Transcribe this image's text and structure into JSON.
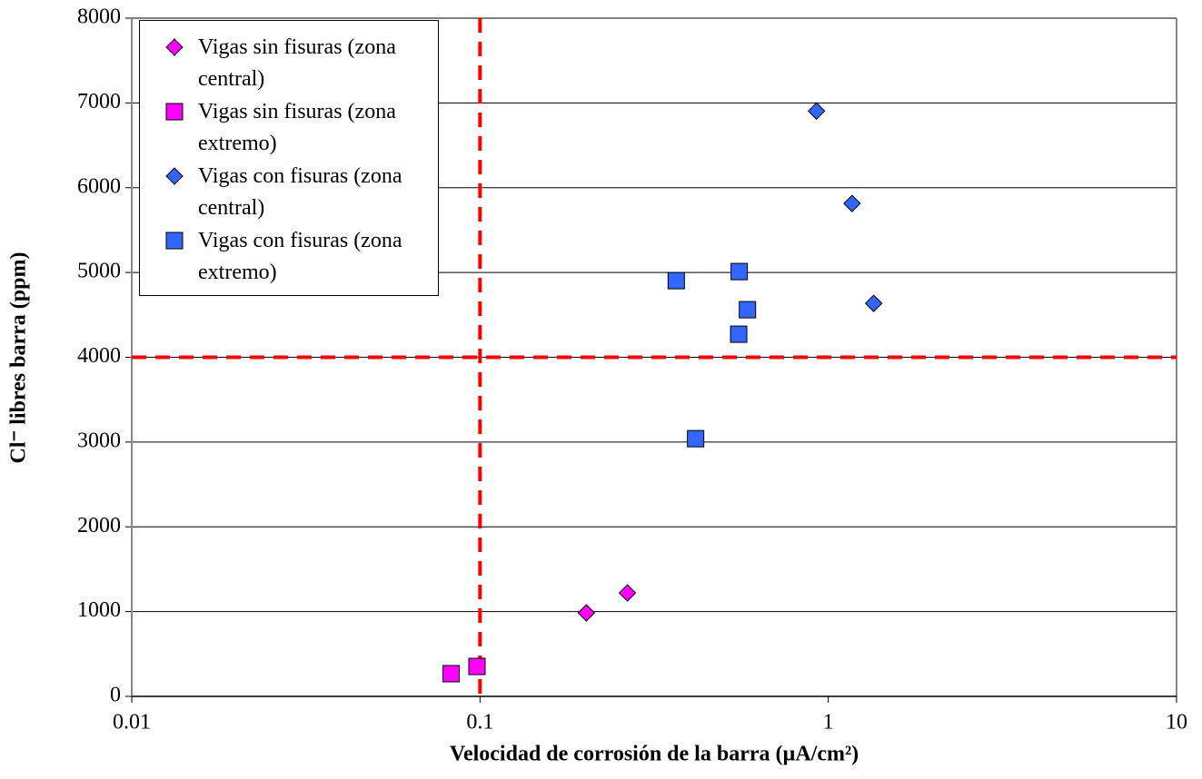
{
  "chart_data": {
    "type": "scatter",
    "x_label": "Velocidad de corrosión de la barra (µA/cm²)",
    "y_label": "Cl⁻ libres barra (ppm)",
    "xscale": "log",
    "xlim": [
      0.01,
      10
    ],
    "xticks": [
      0.01,
      0.1,
      1,
      10
    ],
    "ylim": [
      0,
      8000
    ],
    "yticks": [
      0,
      1000,
      2000,
      3000,
      4000,
      5000,
      6000,
      7000,
      8000
    ],
    "grid": true,
    "legend": "upper left",
    "reference_lines": {
      "color": "#ff0000",
      "x": [
        0.1
      ],
      "y": [
        4000
      ]
    },
    "series": [
      {
        "name": "Vigas sin fisuras (zona central)",
        "color": "#ff00ff",
        "marker": "diamond",
        "x": [
          0.202,
          0.265
        ],
        "values": [
          985,
          1220
        ]
      },
      {
        "name": "Vigas sin fisuras (zona extremo)",
        "color": "#ff00ff",
        "marker": "square",
        "x": [
          0.0826,
          0.098
        ],
        "values": [
          268,
          353
        ]
      },
      {
        "name": "Vigas con fisuras (zona central)",
        "color": "#3366ff",
        "marker": "diamond",
        "x": [
          0.925,
          1.17,
          1.35
        ],
        "values": [
          6905,
          5814,
          4636
        ]
      },
      {
        "name": "Vigas con fisuras (zona extremo)",
        "color": "#3366ff",
        "marker": "square",
        "x": [
          0.366,
          0.416,
          0.555,
          0.553,
          0.586
        ],
        "values": [
          4904,
          3040,
          5011,
          4272,
          4561
        ]
      }
    ]
  }
}
